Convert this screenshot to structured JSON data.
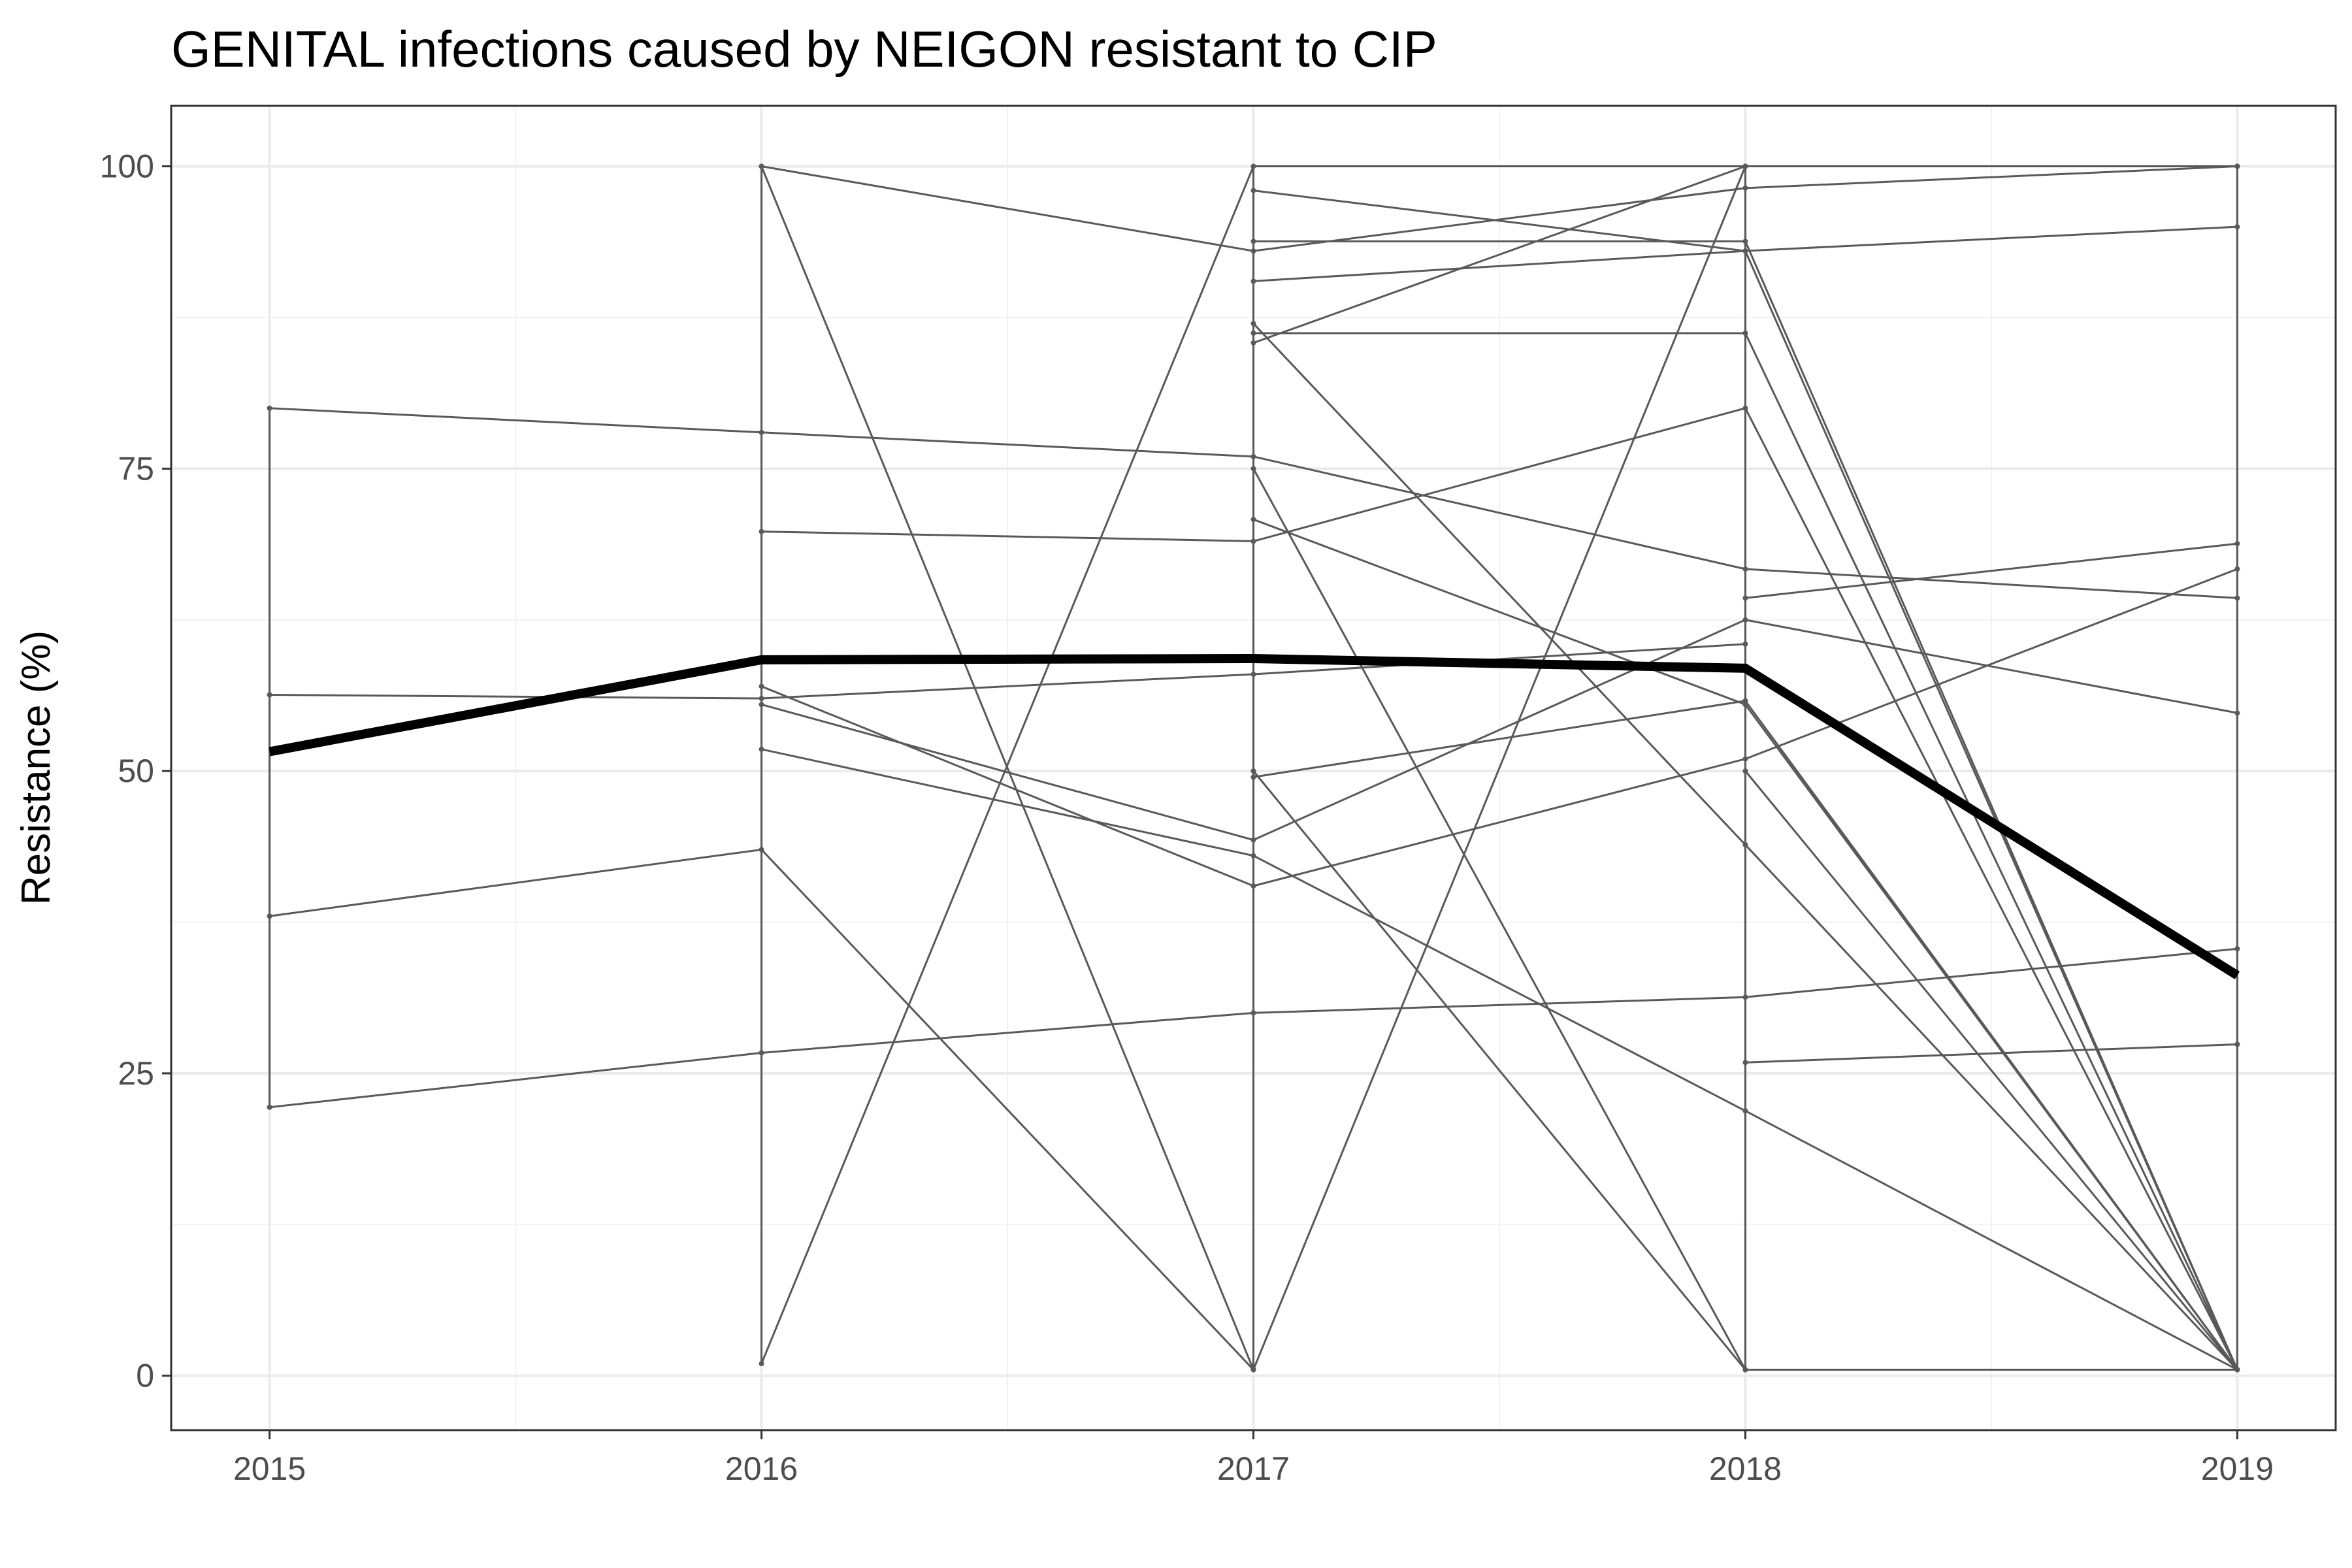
{
  "chart_data": {
    "type": "line",
    "title": "GENITAL infections caused by NEIGON resistant to CIP",
    "xlabel": "",
    "ylabel": "Resistance (%)",
    "x": [
      2015,
      2016,
      2017,
      2018,
      2019
    ],
    "x_tick_labels": [
      "2015",
      "2016",
      "2017",
      "2018",
      "2019"
    ],
    "y_ticks": [
      0,
      25,
      50,
      75,
      100
    ],
    "y_tick_labels": [
      "0",
      "25",
      "50",
      "75",
      "100"
    ],
    "xlim": [
      2014.8,
      2019.2
    ],
    "ylim": [
      -4.5,
      105
    ],
    "grid": true,
    "legend": "none",
    "colors": {
      "individual": "#595959",
      "mean": "#000000",
      "grid_major": "#ebebeb",
      "grid_minor": "#f2f2f2",
      "panel_border": "#333333"
    },
    "series": [
      {
        "values": [
          80,
          78,
          76,
          66.7,
          64.3
        ]
      },
      {
        "values": [
          56.3,
          56,
          58,
          60.5,
          null
        ]
      },
      {
        "values": [
          38,
          43.5,
          0.5,
          null,
          null
        ]
      },
      {
        "values": [
          22.2,
          26.7,
          30,
          31.3,
          35.3
        ]
      },
      {
        "values": [
          null,
          100,
          0.5,
          null,
          null
        ]
      },
      {
        "values": [
          null,
          100,
          93,
          98.2,
          100
        ]
      },
      {
        "values": [
          null,
          1,
          100,
          100,
          100
        ]
      },
      {
        "values": [
          null,
          69.8,
          69,
          80,
          0.5
        ]
      },
      {
        "values": [
          null,
          57,
          40.5,
          51,
          66.7
        ]
      },
      {
        "values": [
          null,
          55.5,
          44.3,
          62.5,
          54.8
        ]
      },
      {
        "values": [
          null,
          51.8,
          43,
          21.9,
          0.5
        ]
      },
      {
        "values": [
          null,
          null,
          98,
          93,
          0.5
        ]
      },
      {
        "values": [
          null,
          null,
          93.8,
          93.8,
          0.5
        ]
      },
      {
        "values": [
          null,
          null,
          90.5,
          93,
          95
        ]
      },
      {
        "values": [
          null,
          null,
          86.2,
          86.2,
          0.5
        ]
      },
      {
        "values": [
          null,
          null,
          85.4,
          100,
          100
        ]
      },
      {
        "values": [
          null,
          null,
          87,
          43.9,
          0.5
        ]
      },
      {
        "values": [
          null,
          null,
          75,
          0.5,
          null
        ]
      },
      {
        "values": [
          null,
          null,
          70.8,
          55.5,
          0.5
        ]
      },
      {
        "values": [
          null,
          null,
          49.5,
          55.8,
          0.5
        ]
      },
      {
        "values": [
          null,
          null,
          50,
          0.5,
          null
        ]
      },
      {
        "values": [
          null,
          null,
          0.5,
          100,
          100
        ]
      },
      {
        "values": [
          null,
          null,
          null,
          64.3,
          68.8
        ]
      },
      {
        "values": [
          null,
          null,
          null,
          25.9,
          27.4
        ]
      },
      {
        "values": [
          null,
          null,
          null,
          50,
          0.5
        ]
      },
      {
        "values": [
          null,
          null,
          null,
          0.5,
          0.5
        ]
      }
    ],
    "mean_series": {
      "values": [
        51.6,
        59.2,
        59.3,
        58.5,
        33.1
      ]
    }
  }
}
